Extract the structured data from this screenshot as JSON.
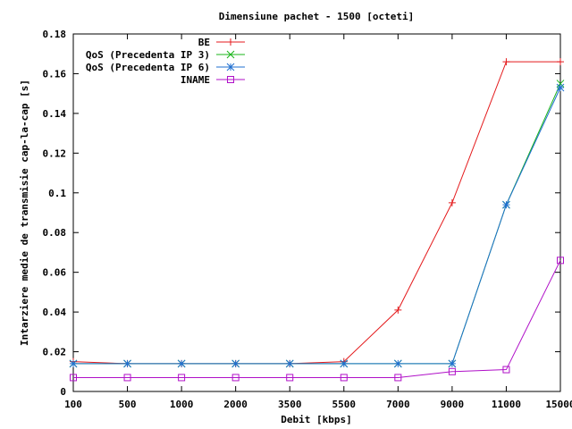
{
  "chart_data": {
    "type": "line",
    "title": "Dimensiune pachet - 1500 [octeti]",
    "xlabel": "Debit [kbps]",
    "ylabel": "Intarziere medie de transmisie cap-la-cap [s]",
    "categories": [
      "100",
      "500",
      "1000",
      "2000",
      "3500",
      "5500",
      "7000",
      "9000",
      "11000",
      "15000"
    ],
    "ylim": [
      0,
      0.18
    ],
    "yticks": [
      "0",
      "0.02",
      "0.04",
      "0.06",
      "0.08",
      "0.1",
      "0.12",
      "0.14",
      "0.16",
      "0.18"
    ],
    "grid": false,
    "legend_position": "top-left",
    "series": [
      {
        "name": "BE",
        "color": "#e41a1c",
        "marker": "plus",
        "values": [
          0.015,
          0.014,
          0.014,
          0.014,
          0.014,
          0.015,
          0.041,
          0.095,
          0.166,
          0.166
        ]
      },
      {
        "name": "QoS (Precedenta IP 3)",
        "color": "#18b518",
        "marker": "cross",
        "values": [
          0.014,
          0.014,
          0.014,
          0.014,
          0.014,
          0.014,
          0.014,
          0.014,
          0.094,
          0.155
        ]
      },
      {
        "name": "QoS (Precedenta IP 6)",
        "color": "#1f6fd0",
        "marker": "star",
        "values": [
          0.014,
          0.014,
          0.014,
          0.014,
          0.014,
          0.014,
          0.014,
          0.014,
          0.094,
          0.153
        ]
      },
      {
        "name": "INAME",
        "color": "#b010c8",
        "marker": "square",
        "values": [
          0.007,
          0.007,
          0.007,
          0.007,
          0.007,
          0.007,
          0.007,
          0.01,
          0.011,
          0.066
        ]
      }
    ]
  }
}
